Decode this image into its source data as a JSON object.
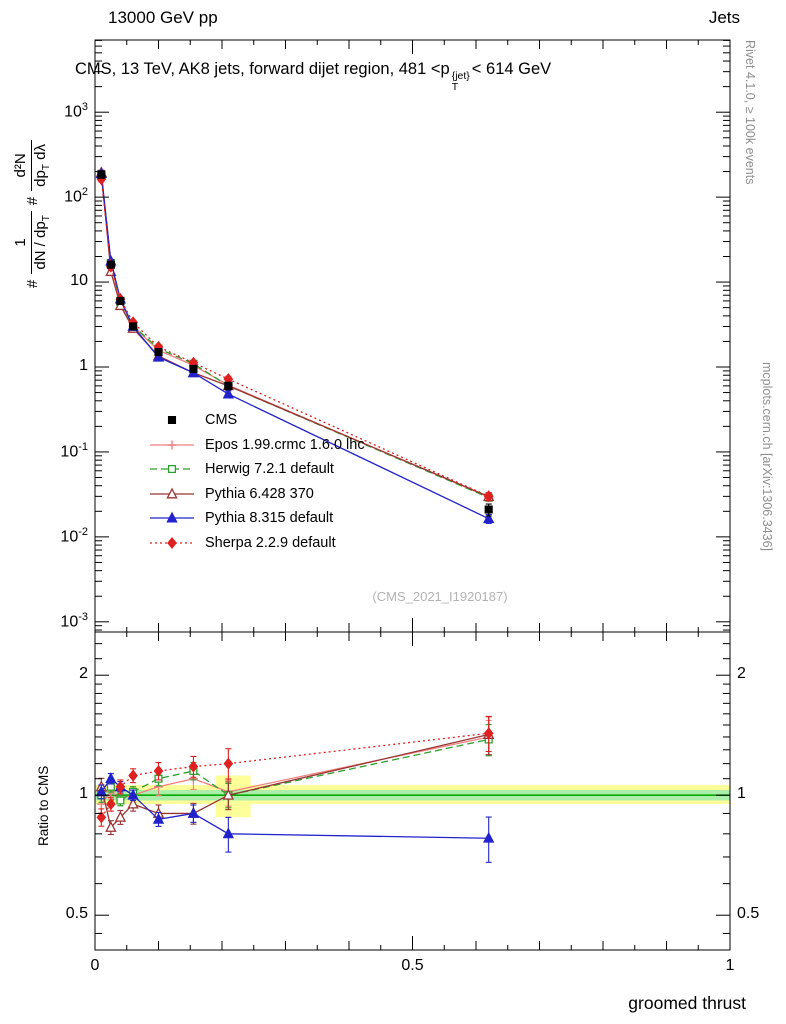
{
  "header": {
    "left": "13000 GeV pp",
    "right": "Jets"
  },
  "title": {
    "pre": "CMS, 13 TeV, AK8 jets, forward dijet region, 481 <p",
    "sup": "{jet}",
    "sub": "T",
    "post": "< 614 GeV"
  },
  "ylabel": {
    "hash": "#",
    "frac1_num": "1",
    "frac1_den_main": "dN / dp",
    "frac1_den_sub": "T",
    "frac2_num": "d²N",
    "frac2_den_main": "dp",
    "frac2_den_sub": "T",
    "frac2_den_tail": " dλ"
  },
  "ratio_ylabel": "Ratio to CMS",
  "xlabel": "groomed thrust",
  "watermark": "(CMS_2021_I1920187)",
  "side_notes": {
    "top": "Rivet 4.1.0, ≥ 100k events",
    "bottom": "mcplots.cern.ch [arXiv:1306.3436]"
  },
  "chart_data": {
    "type": "line",
    "title": "CMS, 13 TeV, AK8 jets, forward dijet region, 481 <p_T^{jet}< 614 GeV",
    "xlabel": "groomed thrust",
    "ylabel": "# 1/(dN/dp_T) # d2N/(dp_T dlambda)",
    "xlim": [
      0,
      1
    ],
    "main_log10_range": [
      -3.12,
      3.85
    ],
    "ratio_log2_range": [
      -1.29,
      1.36
    ],
    "x": [
      0.01,
      0.025,
      0.04,
      0.06,
      0.1,
      0.155,
      0.21,
      0.62
    ],
    "cms": {
      "name": "CMS",
      "color": "#000000",
      "marker": "square",
      "filled": true,
      "values": [
        185,
        16,
        6.0,
        3.0,
        1.5,
        0.95,
        0.6,
        0.021
      ],
      "rel_err": [
        0.1,
        0.07,
        0.06,
        0.05,
        0.06,
        0.07,
        0.1,
        0.16
      ]
    },
    "series": [
      {
        "name": "Epos 1.99.crmc 1.6.0 lhc",
        "color": "#f08080",
        "dash": "",
        "marker": "plus",
        "filled": false,
        "ratio": [
          0.95,
          1.02,
          0.98,
          1.0,
          1.05,
          1.1,
          1.02,
          1.4
        ],
        "rel_err": [
          0.08,
          0.05,
          0.05,
          0.04,
          0.05,
          0.06,
          0.08,
          0.1
        ],
        "ratio_err": [
          0.05,
          0.04,
          0.04,
          0.04,
          0.05,
          0.06,
          0.08,
          0.1
        ]
      },
      {
        "name": "Herwig 7.2.1 default",
        "color": "#2ca02c",
        "dash": "7,4",
        "marker": "square",
        "filled": false,
        "ratio": [
          1.0,
          1.05,
          0.97,
          1.02,
          1.1,
          1.15,
          1.0,
          1.38
        ],
        "rel_err": [
          0.06,
          0.04,
          0.04,
          0.03,
          0.04,
          0.05,
          0.07,
          0.09
        ],
        "ratio_err": [
          0.04,
          0.03,
          0.03,
          0.03,
          0.04,
          0.05,
          0.07,
          0.09
        ]
      },
      {
        "name": "Pythia 6.428 370",
        "color": "#993333",
        "dash": "",
        "marker": "triangle",
        "filled": false,
        "ratio": [
          1.05,
          0.83,
          0.88,
          0.95,
          0.9,
          0.9,
          1.0,
          1.42
        ],
        "rel_err": [
          0.07,
          0.05,
          0.04,
          0.04,
          0.05,
          0.06,
          0.08,
          0.11
        ],
        "ratio_err": [
          0.05,
          0.04,
          0.04,
          0.04,
          0.05,
          0.06,
          0.08,
          0.11
        ]
      },
      {
        "name": "Pythia 8.315 default",
        "color": "#2222cc",
        "dash": "",
        "marker": "triangle",
        "filled": true,
        "ratio": [
          1.02,
          1.1,
          1.05,
          1.0,
          0.87,
          0.9,
          0.8,
          0.78
        ],
        "rel_err": [
          0.06,
          0.04,
          0.04,
          0.03,
          0.04,
          0.05,
          0.09,
          0.12
        ],
        "ratio_err": [
          0.04,
          0.03,
          0.03,
          0.03,
          0.04,
          0.05,
          0.1,
          0.13
        ]
      },
      {
        "name": "Sherpa 2.2.9 default",
        "color": "#e02020",
        "dash": "2,3",
        "marker": "diamond",
        "filled": true,
        "ratio": [
          0.88,
          0.95,
          1.05,
          1.12,
          1.15,
          1.18,
          1.2,
          1.43
        ],
        "rel_err": [
          0.07,
          0.05,
          0.04,
          0.04,
          0.05,
          0.06,
          0.08,
          0.1
        ],
        "ratio_err": [
          0.05,
          0.04,
          0.04,
          0.04,
          0.05,
          0.06,
          0.09,
          0.1
        ]
      }
    ],
    "bands": [
      {
        "x0": 0.0,
        "x1": 1.0,
        "y0": 0.95,
        "y1": 1.06,
        "color": "#ffff99"
      },
      {
        "x0": 0.19,
        "x1": 0.245,
        "y0": 0.88,
        "y1": 1.12,
        "color": "#ffff99"
      },
      {
        "x0": 0.0,
        "x1": 1.0,
        "y0": 0.97,
        "y1": 1.03,
        "color": "#aaeeaa"
      }
    ],
    "unity_line_color": "#00aa00",
    "ticks": {
      "main_y_exponents": [
        3,
        2,
        1,
        0,
        -1,
        -2,
        -3
      ],
      "ratio_major": [
        2,
        1,
        0.5
      ],
      "ratio_major_labels": [
        "2",
        "1",
        "0.5"
      ],
      "ratio_minor": [
        0.45,
        0.6,
        0.7,
        0.8,
        0.9,
        1.1,
        1.2,
        1.3,
        1.4,
        1.5,
        1.6,
        1.7,
        1.8,
        1.9,
        2.2,
        2.4
      ],
      "x_labels": [
        [
          "0",
          0
        ],
        [
          "0.5",
          0.5
        ],
        [
          "1",
          1
        ]
      ]
    }
  }
}
